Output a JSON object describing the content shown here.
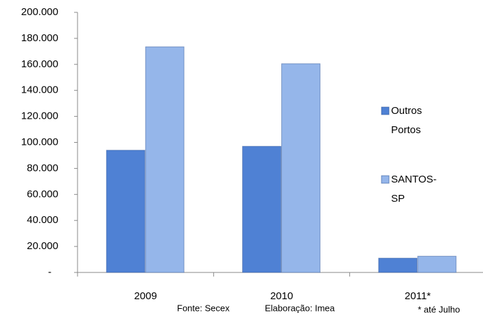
{
  "chart_data": {
    "type": "bar",
    "categories": [
      "2009",
      "2010",
      "2011*"
    ],
    "series": [
      {
        "name": "Outros Portos",
        "color": "#4f81d4",
        "values": [
          94000,
          97000,
          11000
        ]
      },
      {
        "name": "SANTOS-SP",
        "color": "#95b6ea",
        "values": [
          173500,
          160500,
          12500
        ]
      }
    ],
    "ylim": [
      0,
      200000
    ],
    "yticks": [
      {
        "value": 0,
        "label": "-"
      },
      {
        "value": 20000,
        "label": "20.000"
      },
      {
        "value": 40000,
        "label": "40.000"
      },
      {
        "value": 60000,
        "label": "60.000"
      },
      {
        "value": 80000,
        "label": "80.000"
      },
      {
        "value": 100000,
        "label": "100.000"
      },
      {
        "value": 120000,
        "label": "120.000"
      },
      {
        "value": 140000,
        "label": "140.000"
      },
      {
        "value": 160000,
        "label": "160.000"
      },
      {
        "value": 180000,
        "label": "180.000"
      },
      {
        "value": 200000,
        "label": "200.000"
      }
    ],
    "legend": "right",
    "grid": false,
    "annotations": [
      "Fonte: Secex",
      "Elaboração: Imea",
      "* até Julho"
    ]
  }
}
